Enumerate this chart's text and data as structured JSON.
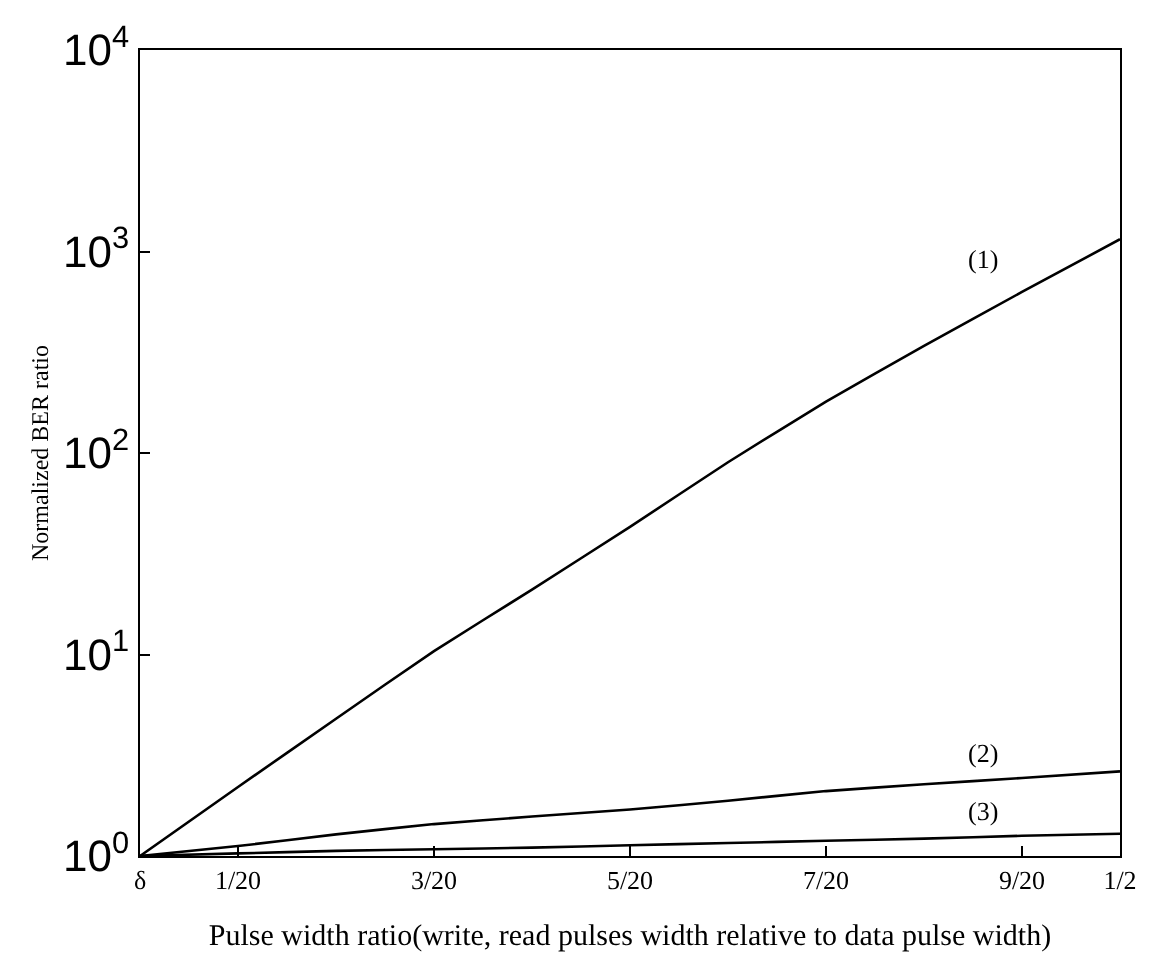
{
  "chart_data": {
    "type": "line",
    "xlabel": "Pulse width ratio(write, read pulses width relative to data pulse width)",
    "ylabel": "Normalized BER ratio",
    "categories": [
      "δ",
      "1/20",
      null,
      "3/20",
      null,
      "5/20",
      null,
      "7/20",
      null,
      "9/20",
      "1/2"
    ],
    "series": [
      {
        "color": "#000000",
        "values": [
          1,
          2.2,
          4.8,
          10.4,
          21,
          43,
          90,
          180,
          340,
          630,
          1150
        ]
      },
      {
        "color": "#000000",
        "values": [
          1,
          1.12,
          1.28,
          1.44,
          1.57,
          1.7,
          1.88,
          2.1,
          2.27,
          2.44,
          2.63
        ]
      },
      {
        "color": "#000000",
        "values": [
          1,
          1.03,
          1.06,
          1.08,
          1.1,
          1.13,
          1.16,
          1.19,
          1.22,
          1.26,
          1.29
        ]
      }
    ],
    "annotations": [
      "(1)",
      "(2)",
      "(3)"
    ],
    "log": "y",
    "ylim": [
      1,
      10000
    ],
    "yticks": [
      {
        "value": 1,
        "label": "10$^{0}$"
      },
      {
        "value": 10,
        "label": "10$^{1}$"
      },
      {
        "value": 100,
        "label": "10$^{2}$"
      },
      {
        "value": 1000,
        "label": "10$^{3}$"
      },
      {
        "value": 10000,
        "label": "10$^{4}$"
      }
    ],
    "legend": false,
    "marker": "none",
    "line_style": "solid"
  }
}
